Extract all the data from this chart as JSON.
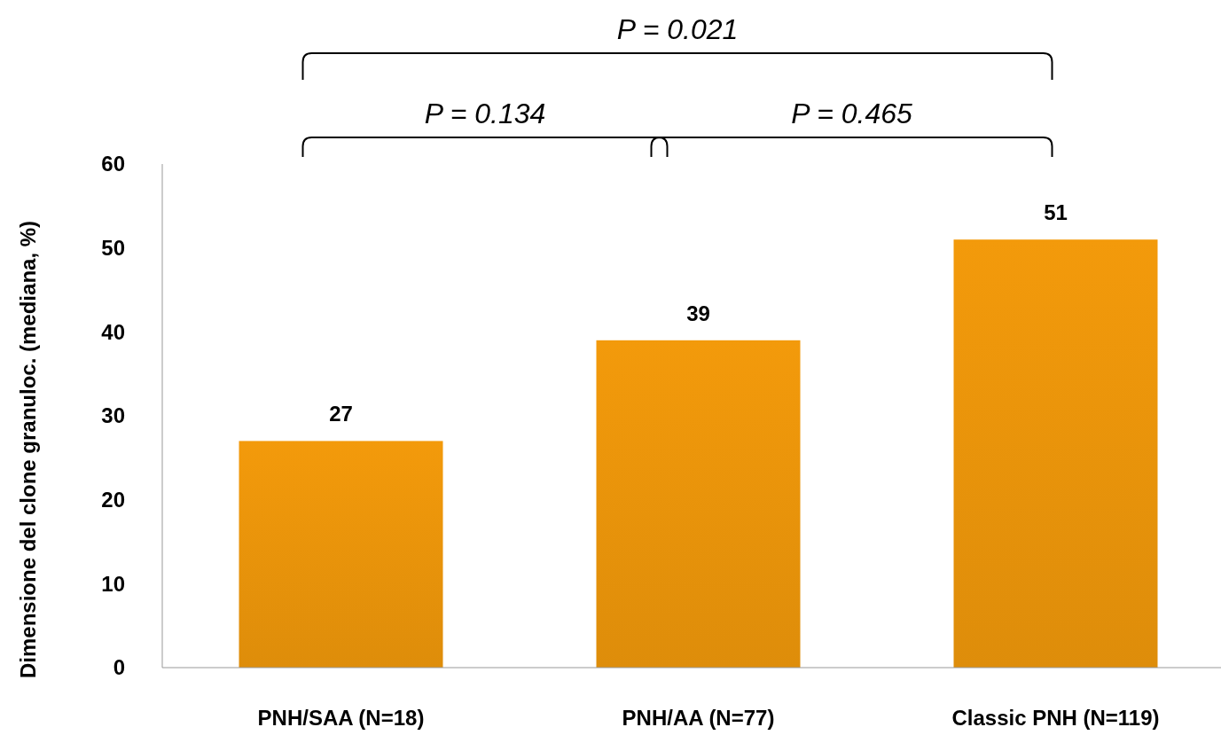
{
  "chart_data": {
    "type": "bar",
    "ylabel": "Dimensione del clone granuloc. (mediana, %)",
    "categories": [
      "PNH/SAA (N=18)",
      "PNH/AA (N=77)",
      "Classic PNH (N=119)"
    ],
    "values": [
      27,
      39,
      51
    ],
    "color": "#f39a0b",
    "ylim": [
      0,
      60
    ],
    "yticks": [
      0,
      10,
      20,
      30,
      40,
      50,
      60
    ],
    "grid": false,
    "data_labels": true,
    "annotations": [
      "P = 0.021",
      "P = 0.134",
      "P = 0.465"
    ]
  }
}
